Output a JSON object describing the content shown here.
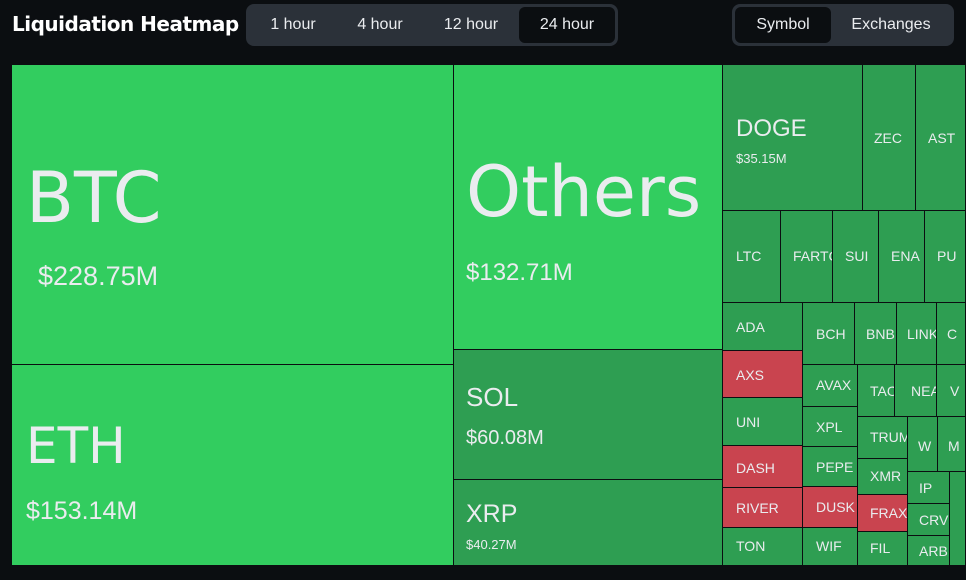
{
  "header": {
    "title": "Liquidation Heatmap",
    "time_options": [
      "1 hour",
      "4 hour",
      "12 hour",
      "24 hour"
    ],
    "selected_time": "24 hour",
    "view_options": [
      "Symbol",
      "Exchanges"
    ],
    "selected_view": "Symbol"
  },
  "colors": {
    "long_liquidation": "#32cd5f",
    "long_liquidation_dark": "#2e9e52",
    "short_liquidation": "#c9444f",
    "background": "#0b0e11",
    "segment_bg": "#2b3139"
  },
  "tiles": {
    "btc": {
      "symbol": "BTC",
      "amount": "$228.75M"
    },
    "eth": {
      "symbol": "ETH",
      "amount": "$153.14M"
    },
    "others": {
      "symbol": "Others",
      "amount": "$132.71M"
    },
    "sol": {
      "symbol": "SOL",
      "amount": "$60.08M"
    },
    "xrp": {
      "symbol": "XRP",
      "amount": "$40.27M"
    },
    "doge": {
      "symbol": "DOGE",
      "amount": "$35.15M"
    },
    "zec": {
      "symbol": "ZEC"
    },
    "ast": {
      "symbol": "AST"
    },
    "ltc": {
      "symbol": "LTC"
    },
    "fartc": {
      "symbol": "FARTC"
    },
    "sui": {
      "symbol": "SUI"
    },
    "ena": {
      "symbol": "ENA"
    },
    "pu": {
      "symbol": "PU"
    },
    "ada": {
      "symbol": "ADA"
    },
    "bch": {
      "symbol": "BCH"
    },
    "bnb": {
      "symbol": "BNB"
    },
    "link": {
      "symbol": "LINK"
    },
    "c": {
      "symbol": "C"
    },
    "axs": {
      "symbol": "AXS"
    },
    "avax": {
      "symbol": "AVAX"
    },
    "tao": {
      "symbol": "TAO"
    },
    "near": {
      "symbol": "NEA"
    },
    "v": {
      "symbol": "V"
    },
    "uni": {
      "symbol": "UNI"
    },
    "xpl": {
      "symbol": "XPL"
    },
    "trump": {
      "symbol": "TRUM"
    },
    "wl": {
      "symbol": "W"
    },
    "m": {
      "symbol": "M"
    },
    "dash": {
      "symbol": "DASH"
    },
    "pepe": {
      "symbol": "PEPE"
    },
    "xmr": {
      "symbol": "XMR"
    },
    "ip": {
      "symbol": "IP"
    },
    "river": {
      "symbol": "RIVER"
    },
    "dusk": {
      "symbol": "DUSK"
    },
    "frax": {
      "symbol": "FRAX"
    },
    "crv": {
      "symbol": "CRV"
    },
    "ton": {
      "symbol": "TON"
    },
    "wif": {
      "symbol": "WIF"
    },
    "fil": {
      "symbol": "FIL"
    },
    "arb": {
      "symbol": "ARB"
    }
  }
}
